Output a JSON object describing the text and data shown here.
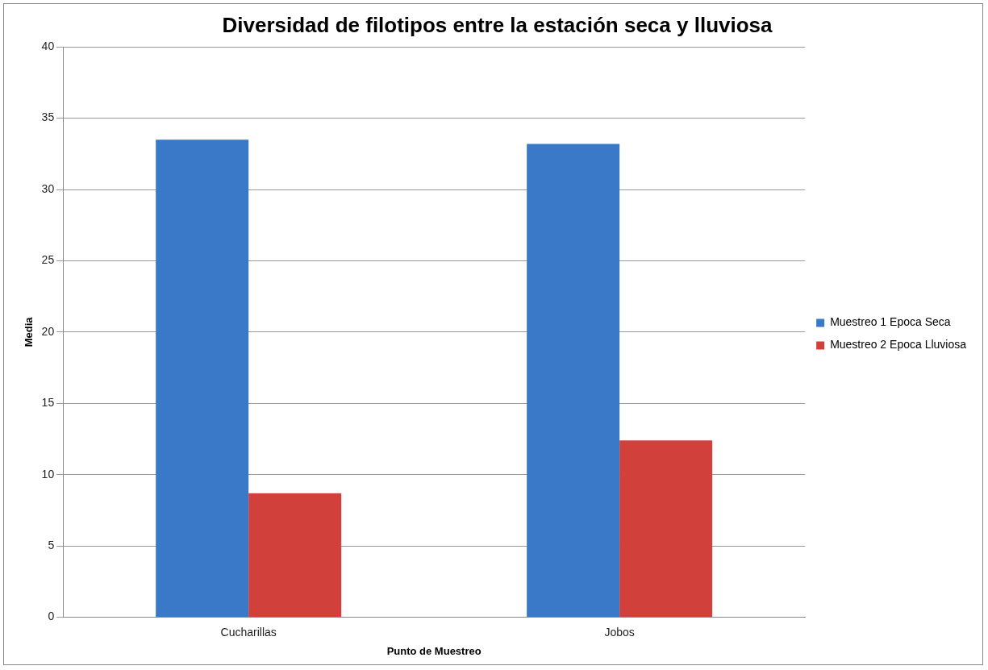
{
  "chart_data": {
    "type": "bar",
    "title": "Diversidad de filotipos entre la estación seca y lluviosa",
    "xlabel": "Punto de Muestreo",
    "ylabel": "Media",
    "categories": [
      "Cucharillas",
      "Jobos"
    ],
    "series": [
      {
        "name": "Muestreo 1 Epoca Seca",
        "color": "#3a78c8",
        "values": [
          33.5,
          33.2
        ]
      },
      {
        "name": "Muestreo 2 Epoca Lluviosa",
        "color": "#d2403c",
        "values": [
          8.7,
          12.4
        ]
      }
    ],
    "ylim": [
      0,
      40
    ],
    "yticks": [
      0,
      5,
      10,
      15,
      20,
      25,
      30,
      35,
      40
    ],
    "grid": "y",
    "legend": "right"
  }
}
